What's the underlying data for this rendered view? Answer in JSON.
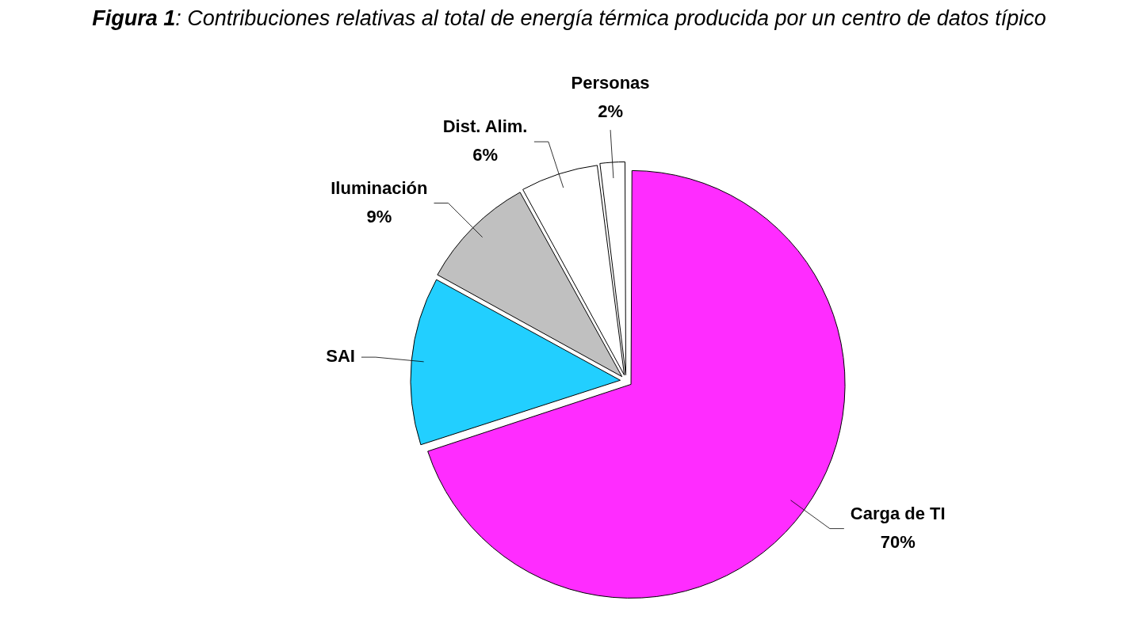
{
  "chart_data": {
    "type": "pie",
    "title": "Figura 1: Contribuciones relativas al total de energía térmica producida por un centro de datos típico",
    "categories": [
      "Carga de TI",
      "SAI",
      "Iluminación",
      "Dist. Alim.",
      "Personas"
    ],
    "values": [
      70,
      13,
      9,
      6,
      2
    ],
    "value_labels": [
      "70%",
      null,
      "9%",
      "6%",
      "2%"
    ],
    "colors": [
      "#ff2cff",
      "#22cfff",
      "#c0c0c0",
      "#ffffff",
      "#ffffff"
    ],
    "legend": false
  }
}
